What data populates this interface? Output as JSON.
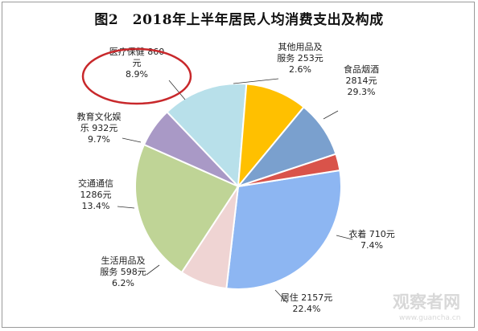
{
  "chart_data": {
    "type": "pie",
    "title": "图2　2018年上半年居民人均消费支出及构成",
    "slices": [
      {
        "name": "食品烟酒",
        "amount": "2814元",
        "percent": "29.3%",
        "value": 29.3,
        "color": "#8db6f2"
      },
      {
        "name": "衣着",
        "amount": "710元",
        "percent": "7.4%",
        "value": 7.4,
        "color": "#efd4d3"
      },
      {
        "name": "居住",
        "amount": "2157元",
        "percent": "22.4%",
        "value": 22.4,
        "color": "#bfd496"
      },
      {
        "name": "生活用品及服务",
        "amount": "598元",
        "percent": "6.2%",
        "value": 6.2,
        "color": "#a999c6"
      },
      {
        "name": "交通通信",
        "amount": "1286元",
        "percent": "13.4%",
        "value": 13.4,
        "color": "#b8e0ea"
      },
      {
        "name": "教育文化娱乐",
        "amount": "932元",
        "percent": "9.7%",
        "value": 9.7,
        "color": "#ffc000"
      },
      {
        "name": "医疗保健",
        "amount": "860元",
        "percent": "8.9%",
        "value": 8.9,
        "color": "#7aa0ce"
      },
      {
        "name": "其他用品及服务",
        "amount": "253元",
        "percent": "2.6%",
        "value": 2.6,
        "color": "#d9534a"
      }
    ],
    "labels": [
      {
        "lines": [
          "食品烟酒",
          "2814元",
          "29.3%"
        ]
      },
      {
        "lines": [
          "衣着 710元",
          "7.4%"
        ]
      },
      {
        "lines": [
          "居住 2157元",
          "22.4%"
        ]
      },
      {
        "lines": [
          "生活用品及",
          "服务 598元",
          "6.2%"
        ]
      },
      {
        "lines": [
          "交通通信",
          "1286元",
          "13.4%"
        ]
      },
      {
        "lines": [
          "教育文化娱",
          "乐 932元",
          "9.7%"
        ]
      },
      {
        "lines": [
          "医疗保健 860",
          "元",
          "8.9%"
        ]
      },
      {
        "lines": [
          "其他用品及",
          "服务 253元",
          "2.6%"
        ]
      }
    ],
    "highlight": "医疗保健",
    "highlight_color": "#c8282b"
  },
  "watermark": {
    "text": "观察者网",
    "url": "www.guancha.cn"
  }
}
